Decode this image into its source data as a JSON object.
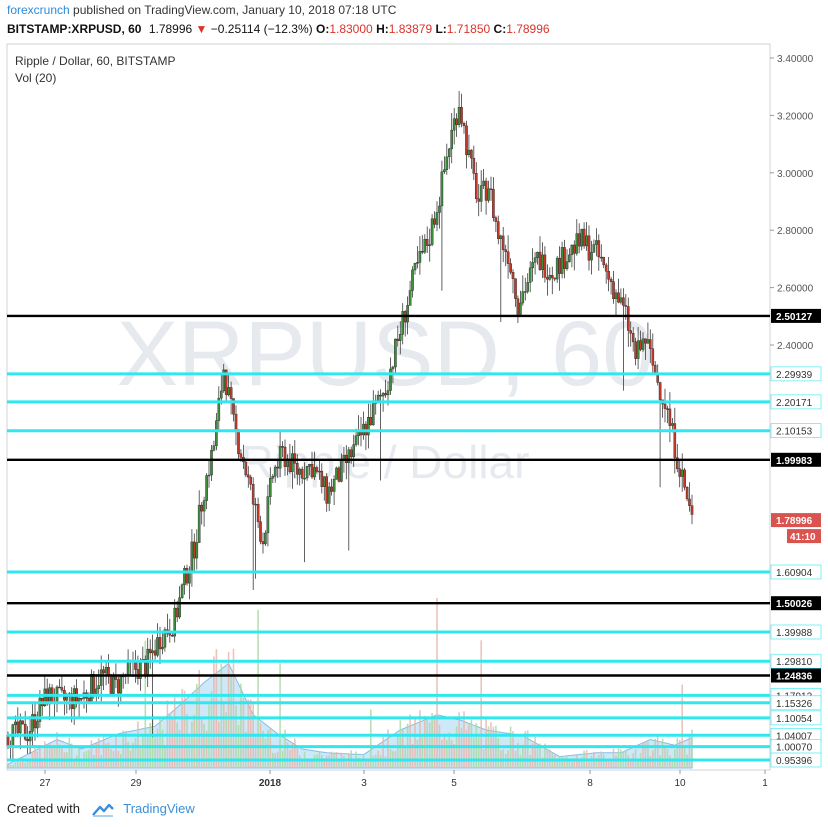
{
  "header": {
    "user": "forexcrunch",
    "published": "published on TradingView.com, January 10, 2018 07:18 UTC",
    "symbol": "BITSTAMP:XRPUSD, 60",
    "last": "1.78996",
    "change_arrow": "▼",
    "change": "−0.25114 (−12.3%)",
    "open_label": "O:",
    "open": "1.83000",
    "high_label": "H:",
    "high": "1.83879",
    "low_label": "L:",
    "low": "1.71850",
    "close_label": "C:",
    "close": "1.78996"
  },
  "legend": {
    "title": "Ripple / Dollar, 60, BITSTAMP",
    "vol": "Vol (20)"
  },
  "watermark": {
    "symbol": "XRPUSD, 60",
    "desc": "Ripple / Dollar"
  },
  "footer": {
    "created_with": "Created with",
    "brand": "TradingView"
  },
  "chart_data": {
    "type": "candlestick",
    "symbol": "XRPUSD",
    "interval": "60",
    "ylim": [
      0.9,
      3.45
    ],
    "y_ticks": [
      3.4,
      3.2,
      3.0,
      2.8,
      2.6,
      2.4
    ],
    "x_ticks": [
      "27",
      "29",
      "2018",
      "3",
      "5",
      "8",
      "10",
      "1"
    ],
    "last_price": 1.78996,
    "countdown": "41:10",
    "horizontal_levels": [
      {
        "value": 2.50127,
        "label": "2.50127",
        "color": "#000000"
      },
      {
        "value": 2.29939,
        "label": "2.29939",
        "color": "#2fe8ef"
      },
      {
        "value": 2.20171,
        "label": "2.20171",
        "color": "#2fe8ef"
      },
      {
        "value": 2.10153,
        "label": "2.10153",
        "color": "#2fe8ef"
      },
      {
        "value": 1.99983,
        "label": "1.99983",
        "color": "#000000"
      },
      {
        "value": 1.60904,
        "label": "1.60904",
        "color": "#2fe8ef"
      },
      {
        "value": 1.50026,
        "label": "1.50026",
        "color": "#000000"
      },
      {
        "value": 1.39988,
        "label": "1.39988",
        "color": "#2fe8ef"
      },
      {
        "value": 1.2981,
        "label": "1.29810",
        "color": "#2fe8ef"
      },
      {
        "value": 1.24836,
        "label": "1.24836",
        "color": "#000000"
      },
      {
        "value": 1.17912,
        "label": "1.17912",
        "color": "#2fe8ef"
      },
      {
        "value": 1.15326,
        "label": "1.15326",
        "color": "#2fe8ef"
      },
      {
        "value": 1.10054,
        "label": "1.10054",
        "color": "#2fe8ef"
      },
      {
        "value": 1.04007,
        "label": "1.04007",
        "color": "#2fe8ef"
      },
      {
        "value": 1.0007,
        "label": "1.00070",
        "color": "#2fe8ef"
      },
      {
        "value": 0.95396,
        "label": "0.95396",
        "color": "#2fe8ef"
      }
    ],
    "close_path": [
      [
        0,
        1.04
      ],
      [
        8,
        1.05
      ],
      [
        12,
        1.12
      ],
      [
        16,
        1.18
      ],
      [
        22,
        1.16
      ],
      [
        30,
        1.17
      ],
      [
        38,
        1.25
      ],
      [
        44,
        1.21
      ],
      [
        50,
        1.27
      ],
      [
        56,
        1.28
      ],
      [
        62,
        1.38
      ],
      [
        68,
        1.44
      ],
      [
        72,
        1.58
      ],
      [
        76,
        1.7
      ],
      [
        80,
        1.9
      ],
      [
        84,
        2.05
      ],
      [
        88,
        2.32
      ],
      [
        92,
        2.12
      ],
      [
        96,
        2.0
      ],
      [
        100,
        1.85
      ],
      [
        104,
        1.72
      ],
      [
        108,
        1.95
      ],
      [
        112,
        2.02
      ],
      [
        118,
        1.96
      ],
      [
        124,
        1.98
      ],
      [
        130,
        1.88
      ],
      [
        136,
        1.96
      ],
      [
        142,
        2.05
      ],
      [
        148,
        2.15
      ],
      [
        154,
        2.25
      ],
      [
        160,
        2.45
      ],
      [
        166,
        2.65
      ],
      [
        172,
        2.78
      ],
      [
        176,
        2.92
      ],
      [
        180,
        3.1
      ],
      [
        184,
        3.25
      ],
      [
        188,
        3.05
      ],
      [
        192,
        2.9
      ],
      [
        196,
        2.96
      ],
      [
        200,
        2.78
      ],
      [
        204,
        2.72
      ],
      [
        208,
        2.55
      ],
      [
        212,
        2.62
      ],
      [
        216,
        2.7
      ],
      [
        222,
        2.66
      ],
      [
        228,
        2.72
      ],
      [
        234,
        2.76
      ],
      [
        240,
        2.72
      ],
      [
        246,
        2.62
      ],
      [
        252,
        2.5
      ],
      [
        256,
        2.36
      ],
      [
        260,
        2.42
      ],
      [
        264,
        2.3
      ],
      [
        268,
        2.2
      ],
      [
        272,
        2.05
      ],
      [
        276,
        1.9
      ],
      [
        279,
        1.79
      ]
    ],
    "volume_profile": [
      [
        0,
        0.02
      ],
      [
        20,
        0.15
      ],
      [
        30,
        0.1
      ],
      [
        45,
        0.18
      ],
      [
        60,
        0.22
      ],
      [
        70,
        0.33
      ],
      [
        80,
        0.45
      ],
      [
        90,
        0.55
      ],
      [
        100,
        0.28
      ],
      [
        110,
        0.18
      ],
      [
        120,
        0.1
      ],
      [
        130,
        0.08
      ],
      [
        145,
        0.07
      ],
      [
        160,
        0.2
      ],
      [
        175,
        0.28
      ],
      [
        185,
        0.25
      ],
      [
        195,
        0.2
      ],
      [
        210,
        0.17
      ],
      [
        225,
        0.06
      ],
      [
        240,
        0.08
      ],
      [
        250,
        0.08
      ],
      [
        262,
        0.15
      ],
      [
        272,
        0.12
      ],
      [
        279,
        0.16
      ]
    ]
  }
}
